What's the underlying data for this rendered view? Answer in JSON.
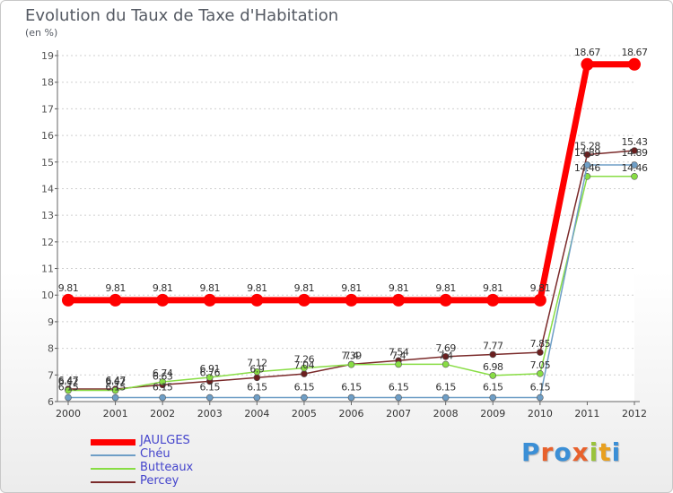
{
  "chart_data": {
    "type": "line",
    "title": "Evolution du Taux de Taxe d'Habitation",
    "subtitle": "(en %)",
    "x": [
      "2000",
      "2001",
      "2002",
      "2003",
      "2004",
      "2005",
      "2006",
      "2007",
      "2008",
      "2009",
      "2010",
      "2011",
      "2012"
    ],
    "ylim": [
      6,
      19
    ],
    "yticks": [
      6,
      7,
      8,
      9,
      10,
      11,
      12,
      13,
      14,
      15,
      16,
      17,
      18,
      19
    ],
    "series": [
      {
        "name": "JAULGES",
        "color": "#ff0000",
        "values": [
          9.81,
          9.81,
          9.81,
          9.81,
          9.81,
          9.81,
          9.81,
          9.81,
          9.81,
          9.81,
          9.81,
          18.67,
          18.67
        ]
      },
      {
        "name": "Chéu",
        "color": "#6e9ec6",
        "values": [
          6.15,
          6.15,
          6.15,
          6.15,
          6.15,
          6.15,
          6.15,
          6.15,
          6.15,
          6.15,
          6.15,
          14.89,
          14.89
        ]
      },
      {
        "name": "Butteaux",
        "color": "#88dd44",
        "values": [
          6.42,
          6.42,
          6.74,
          6.91,
          7.12,
          7.26,
          7.39,
          7.4,
          7.4,
          6.98,
          7.05,
          14.46,
          14.46
        ]
      },
      {
        "name": "Percey",
        "color": "#7a2a2a",
        "values": [
          6.47,
          6.47,
          6.63,
          6.76,
          6.9,
          7.04,
          7.4,
          7.54,
          7.69,
          7.77,
          7.85,
          15.28,
          15.43
        ]
      }
    ],
    "labels": {
      "JAULGES": [
        "9.81",
        "9.81",
        "9.81",
        "9.81",
        "9.81",
        "9.81",
        "9.81",
        "9.81",
        "9.81",
        "9.81",
        "9.81",
        "18.67",
        "18.67"
      ],
      "Chéu": [
        "6.15",
        "6.15",
        "6.15",
        "6.15",
        "6.15",
        "6.15",
        "6.15",
        "6.15",
        "6.15",
        "6.15",
        "6.15",
        "14.89",
        "14.89"
      ],
      "Butteaux": [
        "6.42",
        "6.42",
        "6.74",
        "6.91",
        "7.12",
        "7.26",
        "7.39",
        "7.4",
        "7.4",
        "6.98",
        "7.05",
        "14.46",
        "14.46"
      ],
      "Percey": [
        "6.47",
        "6.47",
        "6.63",
        "6.76",
        "6.9",
        "7.04",
        "7.4",
        "7.54",
        "7.69",
        "7.77",
        "7.85",
        "15.28",
        "15.43"
      ]
    },
    "legend_position": "bottom-left"
  },
  "logo": {
    "letters": [
      "P",
      "r",
      "o",
      "x",
      "i",
      "t",
      "i"
    ],
    "colors": [
      "#3b8fd6",
      "#e8612c",
      "#3b8fd6",
      "#e8612c",
      "#9ac33c",
      "#e8a020",
      "#3b8fd6"
    ]
  }
}
